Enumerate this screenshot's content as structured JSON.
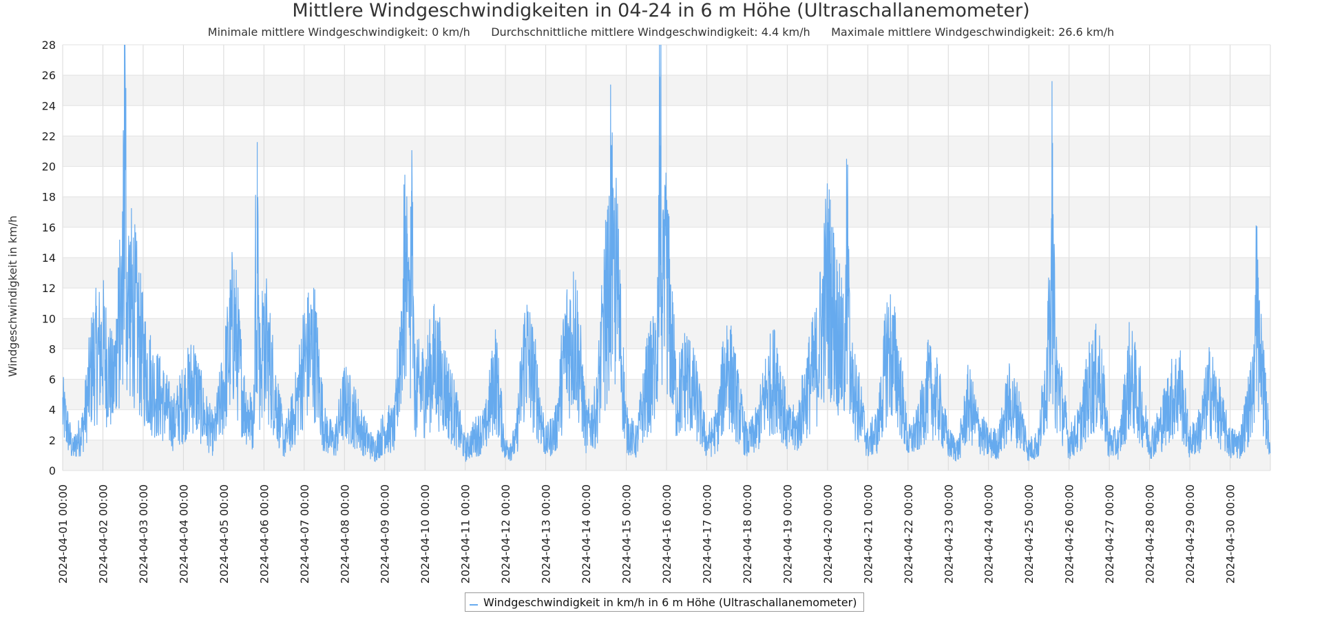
{
  "chart_data": {
    "type": "line",
    "title": "Mittlere Windgeschwindigkeiten in 04-24 in 6 m Höhe (Ultraschallanemometer)",
    "subtitle": "Minimale mittlere Windgeschwindigkeit: 0 km/h      Durchschnittliche mittlere Windgeschwindigkeit: 4.4 km/h      Maximale mittlere Windgeschwindigkeit: 26.6 km/h",
    "xlabel": "",
    "ylabel": "Windgeschwindigkeit in km/h",
    "ylim": [
      0,
      28
    ],
    "yticks": [
      0,
      2,
      4,
      6,
      8,
      10,
      12,
      14,
      16,
      18,
      20,
      22,
      24,
      26,
      28
    ],
    "xlim": [
      "2024-04-01 00:00",
      "2024-05-01 00:00"
    ],
    "xtick_labels": [
      "2024-04-01 00:00",
      "2024-04-02 00:00",
      "2024-04-03 00:00",
      "2024-04-04 00:00",
      "2024-04-05 00:00",
      "2024-04-06 00:00",
      "2024-04-07 00:00",
      "2024-04-08 00:00",
      "2024-04-09 00:00",
      "2024-04-10 00:00",
      "2024-04-11 00:00",
      "2024-04-12 00:00",
      "2024-04-13 00:00",
      "2024-04-14 00:00",
      "2024-04-15 00:00",
      "2024-04-16 00:00",
      "2024-04-17 00:00",
      "2024-04-18 00:00",
      "2024-04-19 00:00",
      "2024-04-20 00:00",
      "2024-04-21 00:00",
      "2024-04-22 00:00",
      "2024-04-23 00:00",
      "2024-04-24 00:00",
      "2024-04-25 00:00",
      "2024-04-26 00:00",
      "2024-04-27 00:00",
      "2024-04-28 00:00",
      "2024-04-29 00:00",
      "2024-04-30 00:00"
    ],
    "grid": true,
    "banded_y": true,
    "legend_position": "bottom-center",
    "series": [
      {
        "name": "Windgeschwindigkeit in km/h in 6 m Höhe (Ultraschallanemometer)",
        "color": "#66aaee",
        "x": [
          "2024-04-01 00:00",
          "2024-04-01 06:00",
          "2024-04-01 12:00",
          "2024-04-01 18:00",
          "2024-04-02 00:00",
          "2024-04-02 06:00",
          "2024-04-02 12:00",
          "2024-04-02 18:00",
          "2024-04-03 00:00",
          "2024-04-03 06:00",
          "2024-04-03 12:00",
          "2024-04-03 18:00",
          "2024-04-04 00:00",
          "2024-04-04 06:00",
          "2024-04-04 12:00",
          "2024-04-04 18:00",
          "2024-04-05 00:00",
          "2024-04-05 06:00",
          "2024-04-05 12:00",
          "2024-04-05 18:00",
          "2024-04-06 00:00",
          "2024-04-06 06:00",
          "2024-04-06 12:00",
          "2024-04-06 18:00",
          "2024-04-07 00:00",
          "2024-04-07 06:00",
          "2024-04-07 12:00",
          "2024-04-07 18:00",
          "2024-04-08 00:00",
          "2024-04-08 06:00",
          "2024-04-08 12:00",
          "2024-04-08 18:00",
          "2024-04-09 00:00",
          "2024-04-09 06:00",
          "2024-04-09 12:00",
          "2024-04-09 18:00",
          "2024-04-10 00:00",
          "2024-04-10 06:00",
          "2024-04-10 12:00",
          "2024-04-10 18:00",
          "2024-04-11 00:00",
          "2024-04-11 06:00",
          "2024-04-11 12:00",
          "2024-04-11 18:00",
          "2024-04-12 00:00",
          "2024-04-12 06:00",
          "2024-04-12 12:00",
          "2024-04-12 18:00",
          "2024-04-13 00:00",
          "2024-04-13 06:00",
          "2024-04-13 12:00",
          "2024-04-13 18:00",
          "2024-04-14 00:00",
          "2024-04-14 06:00",
          "2024-04-14 12:00",
          "2024-04-14 18:00",
          "2024-04-15 00:00",
          "2024-04-15 06:00",
          "2024-04-15 12:00",
          "2024-04-15 18:00",
          "2024-04-16 00:00",
          "2024-04-16 06:00",
          "2024-04-16 12:00",
          "2024-04-16 18:00",
          "2024-04-17 00:00",
          "2024-04-17 06:00",
          "2024-04-17 12:00",
          "2024-04-17 18:00",
          "2024-04-18 00:00",
          "2024-04-18 06:00",
          "2024-04-18 12:00",
          "2024-04-18 18:00",
          "2024-04-19 00:00",
          "2024-04-19 06:00",
          "2024-04-19 12:00",
          "2024-04-19 18:00",
          "2024-04-20 00:00",
          "2024-04-20 06:00",
          "2024-04-20 12:00",
          "2024-04-20 18:00",
          "2024-04-21 00:00",
          "2024-04-21 06:00",
          "2024-04-21 12:00",
          "2024-04-21 18:00",
          "2024-04-22 00:00",
          "2024-04-22 06:00",
          "2024-04-22 12:00",
          "2024-04-22 18:00",
          "2024-04-23 00:00",
          "2024-04-23 06:00",
          "2024-04-23 12:00",
          "2024-04-23 18:00",
          "2024-04-24 00:00",
          "2024-04-24 06:00",
          "2024-04-24 12:00",
          "2024-04-24 18:00",
          "2024-04-25 00:00",
          "2024-04-25 06:00",
          "2024-04-25 12:00",
          "2024-04-25 18:00",
          "2024-04-26 00:00",
          "2024-04-26 06:00",
          "2024-04-26 12:00",
          "2024-04-26 18:00",
          "2024-04-27 00:00",
          "2024-04-27 06:00",
          "2024-04-27 12:00",
          "2024-04-27 18:00",
          "2024-04-28 00:00",
          "2024-04-28 06:00",
          "2024-04-28 12:00",
          "2024-04-28 18:00",
          "2024-04-29 00:00",
          "2024-04-29 06:00",
          "2024-04-29 12:00",
          "2024-04-29 18:00",
          "2024-04-30 00:00",
          "2024-04-30 06:00",
          "2024-04-30 12:00",
          "2024-04-30 18:00",
          "2024-05-01 00:00"
        ],
        "y": [
          4.5,
          1.5,
          3,
          8,
          9,
          6,
          13,
          12,
          8,
          6,
          5,
          3.5,
          5,
          6.5,
          4,
          2.5,
          6,
          11,
          5,
          3,
          10,
          6,
          2,
          4,
          8,
          9,
          3,
          2,
          5,
          4,
          2.5,
          1.5,
          3,
          3,
          14,
          6,
          6,
          8,
          6,
          4,
          1.5,
          2.5,
          3,
          7,
          1.5,
          2,
          9,
          6,
          2,
          3,
          9,
          10,
          3,
          4,
          12,
          14,
          3,
          2,
          6,
          8,
          14,
          5,
          7,
          5,
          2,
          3,
          8,
          5,
          2,
          3,
          6,
          7,
          3,
          3,
          6,
          8,
          14,
          10,
          7,
          5,
          2,
          3,
          9,
          7,
          2,
          3,
          6,
          5,
          2,
          1.5,
          5,
          3,
          2,
          2,
          5,
          4,
          1.5,
          2,
          9,
          6,
          2,
          3,
          6,
          7,
          2,
          2,
          7,
          5,
          2,
          3,
          5,
          6,
          2,
          3,
          6,
          4,
          2,
          2,
          5,
          8,
          1.5
        ],
        "peaks": [
          {
            "x": "2024-04-02 13:00",
            "y": 26.6
          },
          {
            "x": "2024-04-05 20:00",
            "y": 21.6
          },
          {
            "x": "2024-04-09 16:00",
            "y": 18.4
          },
          {
            "x": "2024-04-14 15:00",
            "y": 20.9
          },
          {
            "x": "2024-04-15 20:00",
            "y": 25.9
          },
          {
            "x": "2024-04-20 12:00",
            "y": 19.1
          },
          {
            "x": "2024-04-25 14:00",
            "y": 20.9
          },
          {
            "x": "2024-04-30 16:00",
            "y": 15.5
          }
        ]
      }
    ]
  }
}
